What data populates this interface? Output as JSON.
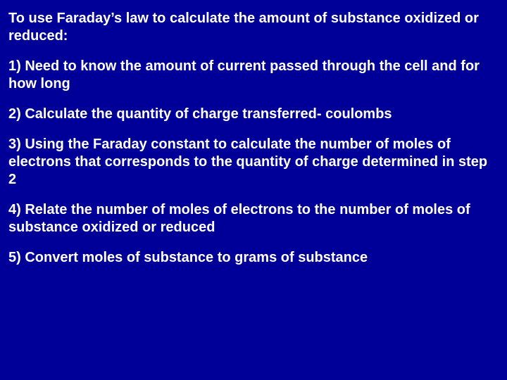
{
  "slide": {
    "background_color": "#000099",
    "text_color": "#ffffff",
    "font_family": "Arial",
    "font_weight": "bold",
    "font_size_pt": 20,
    "paragraphs": [
      "To use Faraday’s law to calculate the amount of substance oxidized or reduced:",
      "1) Need to know the amount of current passed through the cell and for how long",
      "2) Calculate the quantity of charge transferred- coulombs",
      "3) Using the Faraday constant to calculate the number of moles of electrons that corresponds to the quantity of charge determined in step 2",
      "4) Relate the number of moles of electrons to the number of moles of substance oxidized or reduced",
      "5) Convert moles of substance to grams of substance"
    ]
  }
}
